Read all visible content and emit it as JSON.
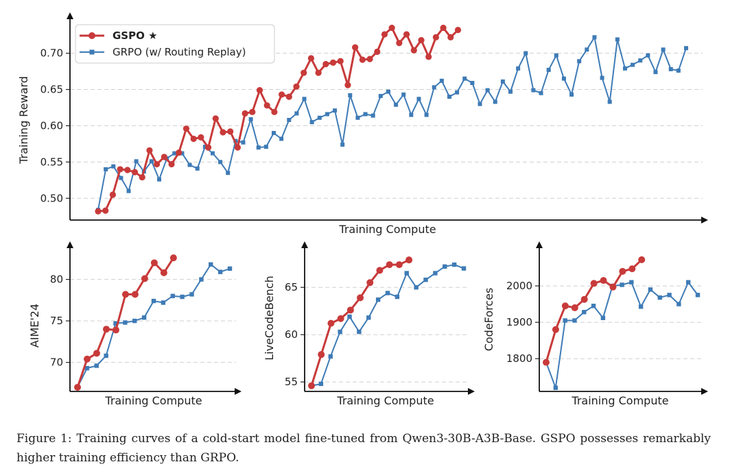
{
  "chart_data": [
    {
      "type": "line",
      "xlabel": "Training Compute",
      "ylabel": "Training Reward",
      "ylim": [
        0.47,
        0.745
      ],
      "yticks": [
        "0.50",
        "0.55",
        "0.60",
        "0.65",
        "0.70"
      ],
      "grid": true,
      "legend": "top-left",
      "series": [
        {
          "name": "GSPO ★",
          "color": "#c83a3a",
          "marker": "circle",
          "values": [
            0.482,
            0.483,
            0.505,
            0.54,
            0.539,
            0.536,
            0.529,
            0.566,
            0.547,
            0.557,
            0.547,
            0.563,
            0.596,
            0.582,
            0.584,
            0.57,
            0.61,
            0.591,
            0.592,
            0.57,
            0.617,
            0.619,
            0.649,
            0.628,
            0.619,
            0.643,
            0.64,
            0.654,
            0.673,
            0.693,
            0.673,
            0.685,
            0.687,
            0.689,
            0.656,
            0.708,
            0.691,
            0.692,
            0.702,
            0.726,
            0.735,
            0.714,
            0.726,
            0.704,
            0.718,
            0.695,
            0.722,
            0.735,
            0.722,
            0.732
          ]
        },
        {
          "name": "GRPO (w/ Routing Replay)",
          "color": "#3e7bb6",
          "marker": "square",
          "values": [
            0.484,
            0.54,
            0.544,
            0.528,
            0.51,
            0.551,
            0.537,
            0.551,
            0.526,
            0.555,
            0.562,
            0.562,
            0.546,
            0.541,
            0.571,
            0.562,
            0.55,
            0.535,
            0.579,
            0.577,
            0.609,
            0.57,
            0.571,
            0.59,
            0.582,
            0.608,
            0.617,
            0.637,
            0.605,
            0.611,
            0.616,
            0.621,
            0.574,
            0.642,
            0.611,
            0.616,
            0.614,
            0.641,
            0.647,
            0.629,
            0.643,
            0.615,
            0.637,
            0.615,
            0.653,
            0.662,
            0.64,
            0.646,
            0.665,
            0.659,
            0.63,
            0.649,
            0.633,
            0.661,
            0.647,
            0.679,
            0.7,
            0.649,
            0.645,
            0.677,
            0.697,
            0.665,
            0.643,
            0.689,
            0.705,
            0.722,
            0.666,
            0.633,
            0.719,
            0.679,
            0.684,
            0.69,
            0.697,
            0.674,
            0.705,
            0.678,
            0.676,
            0.707
          ]
        }
      ]
    },
    {
      "type": "line",
      "xlabel": "Training Compute",
      "ylabel": "AIME'24",
      "ylim": [
        66.5,
        83.6
      ],
      "yticks": [
        "70",
        "75",
        "80"
      ],
      "grid": true,
      "series": [
        {
          "name": "GSPO ★",
          "color": "#c83a3a",
          "marker": "circle",
          "values": [
            67.0,
            70.4,
            71.1,
            74.0,
            73.9,
            78.2,
            78.2,
            80.1,
            82.0,
            80.8,
            82.6
          ]
        },
        {
          "name": "GRPO (w/ Routing Replay)",
          "color": "#3e7bb6",
          "marker": "square",
          "values": [
            67.0,
            69.3,
            69.6,
            70.8,
            74.7,
            74.8,
            75.0,
            75.4,
            77.4,
            77.2,
            78.0,
            77.9,
            78.2,
            80.0,
            81.8,
            80.9,
            81.3
          ]
        }
      ]
    },
    {
      "type": "line",
      "xlabel": "Training Compute",
      "ylabel": "LiveCodeBench",
      "ylim": [
        54.0,
        69.0
      ],
      "yticks": [
        "55",
        "60",
        "65"
      ],
      "grid": true,
      "series": [
        {
          "name": "GSPO ★",
          "color": "#c83a3a",
          "marker": "circle",
          "values": [
            54.6,
            57.9,
            61.2,
            61.7,
            62.6,
            63.9,
            65.5,
            66.8,
            67.4,
            67.4,
            67.9
          ]
        },
        {
          "name": "GRPO (w/ Routing Replay)",
          "color": "#3e7bb6",
          "marker": "square",
          "values": [
            54.6,
            54.8,
            57.7,
            60.3,
            61.9,
            60.3,
            61.8,
            63.7,
            64.4,
            64.0,
            66.5,
            65.0,
            65.8,
            66.5,
            67.2,
            67.4,
            67.0
          ]
        }
      ]
    },
    {
      "type": "line",
      "xlabel": "Training Compute",
      "ylabel": "CodeForces",
      "ylim": [
        1710,
        2100
      ],
      "yticks": [
        "1800",
        "1900",
        "2000"
      ],
      "grid": true,
      "series": [
        {
          "name": "GSPO ★",
          "color": "#c83a3a",
          "marker": "circle",
          "values": [
            1790,
            1880,
            1945,
            1940,
            1963,
            2007,
            2015,
            1997,
            2040,
            2047,
            2072
          ]
        },
        {
          "name": "GRPO (w/ Routing Replay)",
          "color": "#3e7bb6",
          "marker": "square",
          "values": [
            1790,
            1720,
            1905,
            1905,
            1928,
            1945,
            1912,
            2000,
            2003,
            2010,
            1943,
            1990,
            1968,
            1975,
            1950,
            2010,
            1975
          ]
        }
      ]
    }
  ],
  "caption": "Figure 1:  Training curves of a cold-start model fine-tuned from Qwen3-30B-A3B-Base. GSPO possesses remarkably higher training efficiency than GRPO."
}
